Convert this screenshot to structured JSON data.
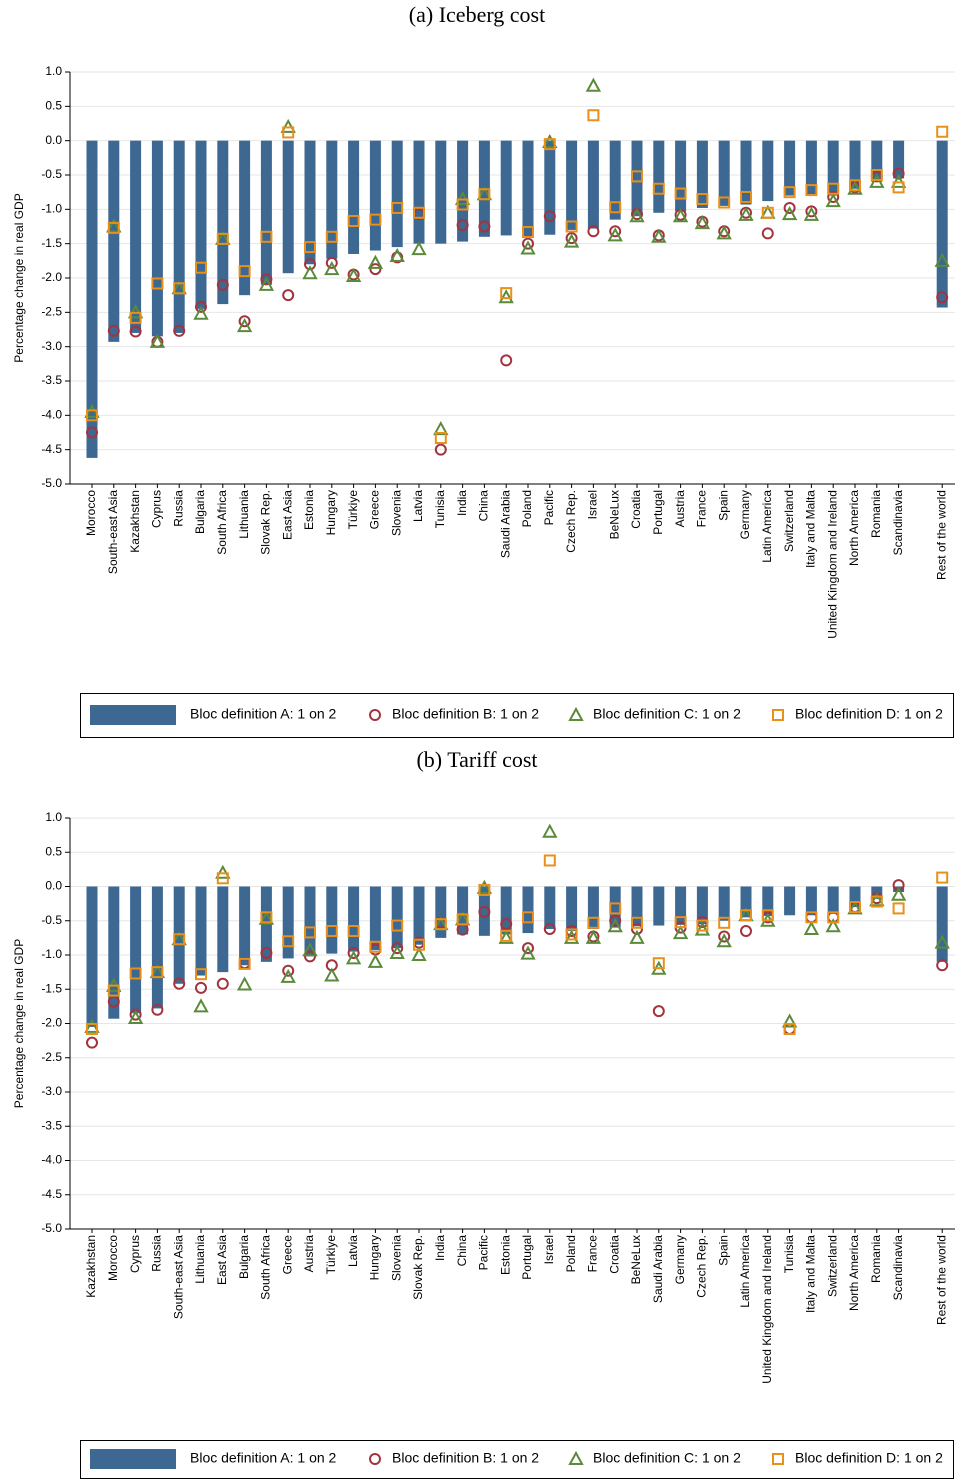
{
  "chart_data": [
    {
      "type": "bar",
      "title": "(a) Iceberg cost",
      "ylabel": "Percentage change in real GDP",
      "categories": [
        "Morocco",
        "South-east Asia",
        "Kazakhstan",
        "Cyprus",
        "Russia",
        "Bulgaria",
        "South Africa",
        "Lithuania",
        "Slovak Rep.",
        "East Asia",
        "Estonia",
        "Hungary",
        "Türkiye",
        "Greece",
        "Slovenia",
        "Latvia",
        "Tunisia",
        "India",
        "China",
        "Saudi Arabia",
        "Poland",
        "Pacific",
        "Czech Rep.",
        "Israel",
        "BeNeLux",
        "Croatia",
        "Portugal",
        "Austria",
        "France",
        "Spain",
        "Germany",
        "Latin America",
        "Switzerland",
        "Italy and Malta",
        "United Kingdom and Ireland",
        "North America",
        "Romania",
        "Scandinavia",
        null,
        "Rest of the world"
      ],
      "series": [
        {
          "name": "Bloc definition A: 1 on 2",
          "marker": "bar",
          "color": "#3d6891",
          "values": [
            -4.62,
            -2.93,
            -2.8,
            -2.85,
            -2.8,
            -2.45,
            -2.38,
            -2.25,
            -2.1,
            -1.93,
            -1.8,
            -1.72,
            -1.65,
            -1.6,
            -1.55,
            -1.5,
            -1.5,
            -1.47,
            -1.4,
            -1.38,
            -1.4,
            -1.37,
            -1.3,
            -1.28,
            -1.15,
            -1.1,
            -1.05,
            -1.03,
            -0.98,
            -0.95,
            -0.93,
            -0.88,
            -0.8,
            -0.78,
            -0.8,
            -0.7,
            -0.6,
            -0.55,
            null,
            -2.43
          ]
        },
        {
          "name": "Bloc definition B: 1 on 2",
          "marker": "circle",
          "color": "#a3333f",
          "values": [
            -4.25,
            -2.77,
            -2.78,
            -2.93,
            -2.77,
            -2.42,
            -2.1,
            -2.63,
            -2.02,
            -2.25,
            -1.8,
            -1.78,
            -1.95,
            -1.87,
            -1.7,
            -1.07,
            -4.5,
            -1.23,
            -1.25,
            -3.2,
            -1.5,
            -1.1,
            -1.42,
            -1.32,
            -1.32,
            -1.07,
            -1.38,
            -1.08,
            -1.18,
            -1.32,
            -1.05,
            -1.35,
            -0.98,
            -1.03,
            -0.82,
            -0.68,
            -0.52,
            -0.48,
            null,
            -2.28
          ]
        },
        {
          "name": "Bloc definition C: 1 on 2",
          "marker": "triangle",
          "color": "#5a8a3a",
          "values": [
            -3.95,
            -1.25,
            -2.5,
            -2.93,
            -2.15,
            -2.52,
            -1.43,
            -2.7,
            -2.1,
            0.2,
            -1.93,
            -1.87,
            -1.97,
            -1.78,
            -1.68,
            -1.58,
            -4.2,
            -0.85,
            -0.78,
            -2.28,
            -1.57,
            -0.02,
            -1.47,
            0.8,
            -1.38,
            -1.1,
            -1.4,
            -1.1,
            -1.2,
            -1.35,
            -1.08,
            -1.05,
            -1.07,
            -1.08,
            -0.88,
            -0.7,
            -0.6,
            -0.6,
            null,
            -1.75
          ]
        },
        {
          "name": "Bloc definition D: 1 on 2",
          "marker": "square",
          "color": "#e8901a",
          "values": [
            -4.0,
            -1.27,
            -2.58,
            -2.08,
            -2.15,
            -1.85,
            -1.43,
            -1.9,
            -1.4,
            0.12,
            -1.55,
            -1.4,
            -1.17,
            -1.15,
            -0.98,
            -1.05,
            -4.33,
            -0.93,
            -0.78,
            -2.22,
            -1.33,
            -0.05,
            -1.25,
            0.37,
            -0.97,
            -0.52,
            -0.7,
            -0.77,
            -0.85,
            -0.9,
            -0.82,
            -1.05,
            -0.75,
            -0.72,
            -0.7,
            -0.65,
            -0.5,
            -0.68,
            null,
            0.13
          ]
        }
      ],
      "ylim": [
        -5,
        1
      ],
      "yticks": [
        {
          "value": 1,
          "label": "1.0"
        },
        {
          "value": 0.5,
          "label": "0.5"
        },
        {
          "value": 0,
          "label": "0.0"
        },
        {
          "value": -0.5,
          "label": "-0.5"
        },
        {
          "value": -1,
          "label": "-1.0"
        },
        {
          "value": -1.5,
          "label": "-1.5"
        },
        {
          "value": -2,
          "label": "-2.0"
        },
        {
          "value": -2.5,
          "label": "-2.5"
        },
        {
          "value": -3,
          "label": "-3.0"
        },
        {
          "value": -3.5,
          "label": "-3.5"
        },
        {
          "value": -4,
          "label": "-4.0"
        },
        {
          "value": -4.5,
          "label": "-4.5"
        },
        {
          "value": -5,
          "label": "-5.0"
        }
      ],
      "grid": true,
      "legend": "bottom"
    },
    {
      "type": "bar",
      "title": "(b) Tariff cost",
      "ylabel": "Percentage change in real GDP",
      "categories": [
        "Kazakhstan",
        "Morocco",
        "Cyprus",
        "Russia",
        "South-east Asia",
        "Lithuania",
        "East Asia",
        "Bulgaria",
        "South Africa",
        "Greece",
        "Austria",
        "Türkiye",
        "Latvia",
        "Hungary",
        "Slovenia",
        "Slovak Rep.",
        "India",
        "China",
        "Pacific",
        "Estonia",
        "Portugal",
        "Israel",
        "Poland",
        "France",
        "Croatia",
        "BeNeLux",
        "Saudi Arabia",
        "Germany",
        "Czech Rep.",
        "Spain",
        "Latin America",
        "United Kingdom and Ireland",
        "Tunisia",
        "Italy and Malta",
        "Switzerland",
        "North America",
        "Romania",
        "Scandinavia",
        null,
        "Rest of the world"
      ],
      "series": [
        {
          "name": "Bloc definition A: 1 on 2",
          "marker": "bar",
          "color": "#3d6891",
          "values": [
            -2.05,
            -1.93,
            -1.85,
            -1.78,
            -1.42,
            -1.3,
            -1.25,
            -1.15,
            -1.1,
            -1.05,
            -1.02,
            -0.98,
            -0.95,
            -0.93,
            -0.9,
            -0.85,
            -0.75,
            -0.7,
            -0.72,
            -0.7,
            -0.68,
            -0.62,
            -0.65,
            -0.62,
            -0.6,
            -0.58,
            -0.57,
            -0.56,
            -0.55,
            -0.5,
            -0.45,
            -0.43,
            -0.42,
            -0.42,
            -0.4,
            -0.3,
            -0.18,
            -0.08,
            null,
            -1.1
          ]
        },
        {
          "name": "Bloc definition B: 1 on 2",
          "marker": "circle",
          "color": "#a3333f",
          "values": [
            -2.28,
            -1.68,
            -1.87,
            -1.8,
            -1.42,
            -1.48,
            -1.42,
            -1.12,
            -0.97,
            -1.23,
            -1.02,
            -1.15,
            -0.97,
            -0.92,
            -0.9,
            -0.82,
            -0.53,
            -0.63,
            -0.37,
            -0.55,
            -0.9,
            -0.62,
            -0.65,
            -0.73,
            -0.5,
            -0.62,
            -1.82,
            -0.6,
            -0.52,
            -0.73,
            -0.65,
            -0.45,
            -2.08,
            -0.45,
            -0.45,
            -0.3,
            -0.17,
            0.02,
            null,
            -1.15
          ]
        },
        {
          "name": "Bloc definition C: 1 on 2",
          "marker": "triangle",
          "color": "#5a8a3a",
          "values": [
            -2.05,
            -1.45,
            -1.92,
            -1.25,
            -0.77,
            -1.75,
            0.2,
            -1.43,
            -0.47,
            -1.32,
            -0.93,
            -1.3,
            -1.05,
            -1.1,
            -0.97,
            -1.0,
            -0.55,
            -0.48,
            -0.02,
            -0.75,
            -0.98,
            0.8,
            -0.75,
            -0.75,
            -0.58,
            -0.75,
            -1.2,
            -0.68,
            -0.63,
            -0.8,
            -0.42,
            -0.5,
            -1.97,
            -0.62,
            -0.58,
            -0.32,
            -0.2,
            -0.12,
            null,
            -0.82
          ]
        },
        {
          "name": "Bloc definition D: 1 on 2",
          "marker": "square",
          "color": "#e8901a",
          "values": [
            -2.08,
            -1.52,
            -1.27,
            -1.25,
            -0.77,
            -1.28,
            0.12,
            -1.13,
            -0.45,
            -0.8,
            -0.67,
            -0.65,
            -0.65,
            -0.88,
            -0.57,
            -0.85,
            -0.55,
            -0.48,
            -0.05,
            -0.72,
            -0.45,
            0.38,
            -0.7,
            -0.53,
            -0.32,
            -0.53,
            -1.12,
            -0.52,
            -0.57,
            -0.53,
            -0.42,
            -0.42,
            -2.08,
            -0.45,
            -0.45,
            -0.3,
            -0.22,
            -0.32,
            null,
            0.13
          ]
        }
      ],
      "ylim": [
        -5,
        1
      ],
      "yticks": [
        {
          "value": 1,
          "label": "1.0"
        },
        {
          "value": 0.5,
          "label": "0.5"
        },
        {
          "value": 0,
          "label": "0.0"
        },
        {
          "value": -0.5,
          "label": "-0.5"
        },
        {
          "value": -1,
          "label": "-1.0"
        },
        {
          "value": -1.5,
          "label": "-1.5"
        },
        {
          "value": -2,
          "label": "-2.0"
        },
        {
          "value": -2.5,
          "label": "-2.5"
        },
        {
          "value": -3,
          "label": "-3.0"
        },
        {
          "value": -3.5,
          "label": "-3.5"
        },
        {
          "value": -4,
          "label": "-4.0"
        },
        {
          "value": -4.5,
          "label": "-4.5"
        },
        {
          "value": -5,
          "label": "-5.0"
        }
      ],
      "grid": true,
      "legend": "bottom"
    }
  ]
}
